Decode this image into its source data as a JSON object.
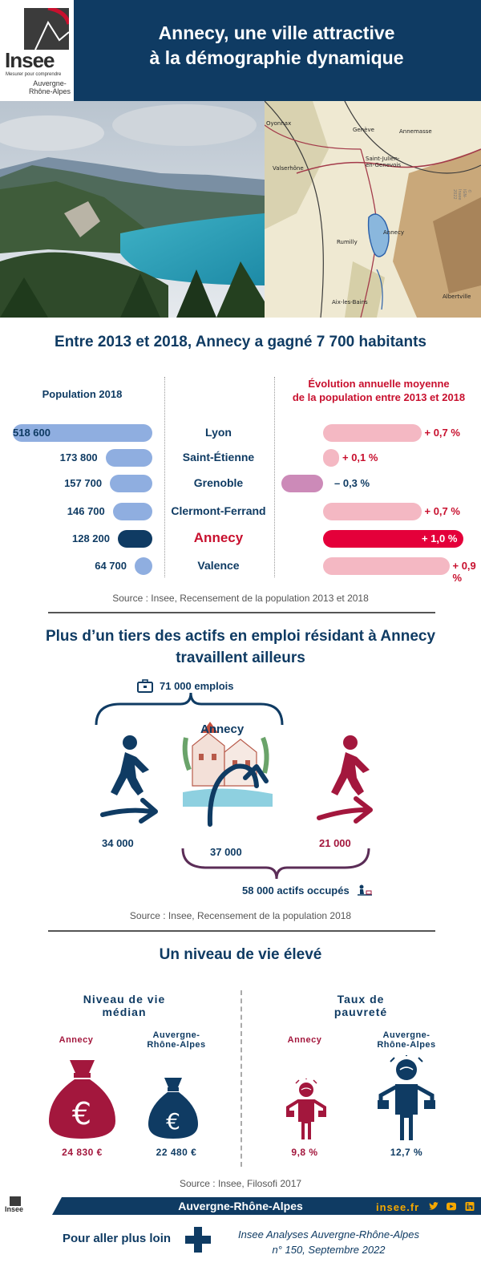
{
  "header": {
    "logo_name": "Insee",
    "logo_tagline": "Mesurer pour comprendre",
    "logo_region_1": "Auvergne-",
    "logo_region_2": "Rhône-Alpes",
    "title_1": "Annecy, une ville attractive",
    "title_2": "à la démographie dynamique"
  },
  "map": {
    "places": [
      "Oyonnax",
      "Genève",
      "Annemasse",
      "Saint-Julien-",
      "en-Genevois",
      "Valserhône",
      "Annecy",
      "Rumilly",
      "Aix-les-Bains",
      "Albertville"
    ],
    "credit": "© IGN-Insee 2022"
  },
  "population_section": {
    "title": "Entre 2013 et 2018, Annecy a gagné 7 700 habitants",
    "population_header": "Population 2018",
    "evolution_header_1": "Évolution annuelle moyenne",
    "evolution_header_2": "de la population entre 2013 et 2018",
    "source": "Source : Insee, Recensement de la population 2013 et 2018",
    "colors": {
      "pop_bar": "#8faee0",
      "pop_highlight": "#0f3b63",
      "evo_pos": "#f4b8c3",
      "evo_neg": "#cc8ab8",
      "evo_highlight": "#e4003a"
    }
  },
  "chart_data": {
    "type": "bar",
    "categories": [
      "Lyon",
      "Saint-Étienne",
      "Grenoble",
      "Clermont-Ferrand",
      "Annecy",
      "Valence"
    ],
    "series": [
      {
        "name": "Population 2018",
        "values": [
          518600,
          173800,
          157700,
          146700,
          128200,
          64700
        ],
        "labels": [
          "518 600",
          "173 800",
          "157 700",
          "146 700",
          "128 200",
          "64 700"
        ]
      },
      {
        "name": "Évolution annuelle moyenne de la population entre 2013 et 2018",
        "values": [
          0.7,
          0.1,
          -0.3,
          0.7,
          1.0,
          0.9
        ],
        "labels": [
          "+ 0,7 %",
          "+ 0,1 %",
          "– 0,3 %",
          "+ 0,7 %",
          "+ 1,0 %",
          "+ 0,9 %"
        ]
      }
    ],
    "highlight": "Annecy"
  },
  "commute_section": {
    "title_1": "Plus d’un tiers des actifs en emploi résidant à Annecy",
    "title_2": "travaillent ailleurs",
    "jobs": "71 000 emplois",
    "city": "Annecy",
    "incoming": "34 000",
    "local": "37 000",
    "outgoing": "21 000",
    "workers": "58 000 actifs occupés",
    "source": "Source : Insee, Recensement de la population 2018"
  },
  "living_section": {
    "title": "Un niveau de vie élevé",
    "median_head_1": "Niveau de vie",
    "median_head_2": "médian",
    "poverty_head_1": "Taux de",
    "poverty_head_2": "pauvreté",
    "annecy_label": "Annecy",
    "region_label_1": "Auvergne-",
    "region_label_2": "Rhône-Alpes",
    "median_annecy": "24 830 €",
    "median_region": "22 480 €",
    "poverty_annecy": "9,8 %",
    "poverty_region": "12,7 %",
    "source": "Source : Insee, Filosofi 2017"
  },
  "footer": {
    "logo_name": "Insee",
    "region": "Auvergne-Rhône-Alpes",
    "site": "insee.fr",
    "further": "Pour aller plus loin",
    "pub_1": "Insee Analyses Auvergne-Rhône-Alpes",
    "pub_2": "n° 150, Septembre 2022"
  }
}
